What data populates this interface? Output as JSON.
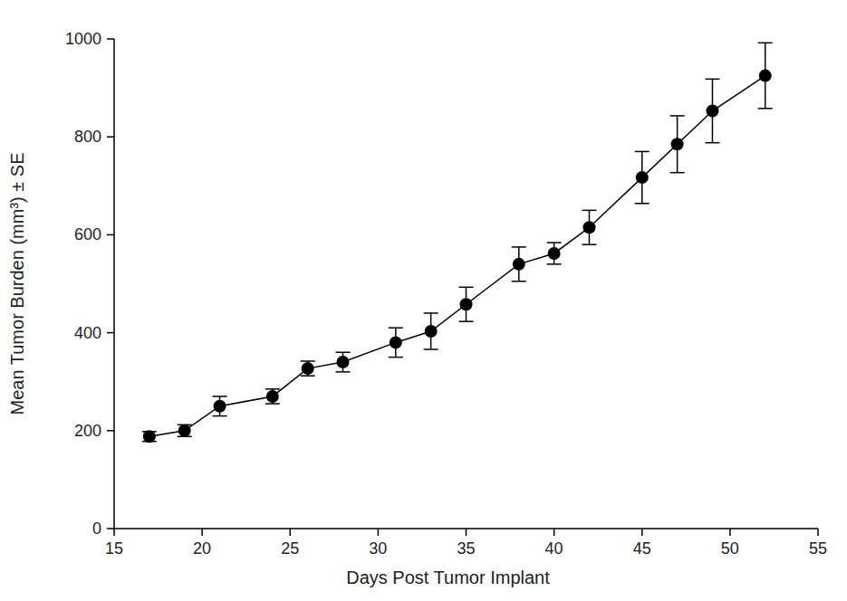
{
  "chart_data": {
    "type": "line",
    "x_label": "Days Post Tumor Implant",
    "y_label": "Mean Tumor Burden (mm³) ± SE",
    "x": [
      17,
      19,
      21,
      24,
      26,
      28,
      31,
      33,
      35,
      38,
      40,
      42,
      45,
      47,
      49,
      52
    ],
    "series": [
      {
        "color": "#000000",
        "marker": "circle",
        "line_style": "solid",
        "values": [
          188,
          200,
          250,
          270,
          327,
          340,
          380,
          403,
          458,
          540,
          562,
          615,
          717,
          785,
          853,
          925
        ],
        "errors": [
          10,
          12,
          20,
          15,
          15,
          20,
          30,
          37,
          35,
          35,
          22,
          35,
          53,
          58,
          65,
          67
        ]
      }
    ],
    "xlim": [
      15,
      55
    ],
    "xticks": [
      15,
      20,
      25,
      30,
      35,
      40,
      45,
      50,
      55
    ],
    "ylim": [
      0,
      1000
    ],
    "yticks": [
      0,
      200,
      400,
      600,
      800,
      1000
    ],
    "grid": false
  }
}
